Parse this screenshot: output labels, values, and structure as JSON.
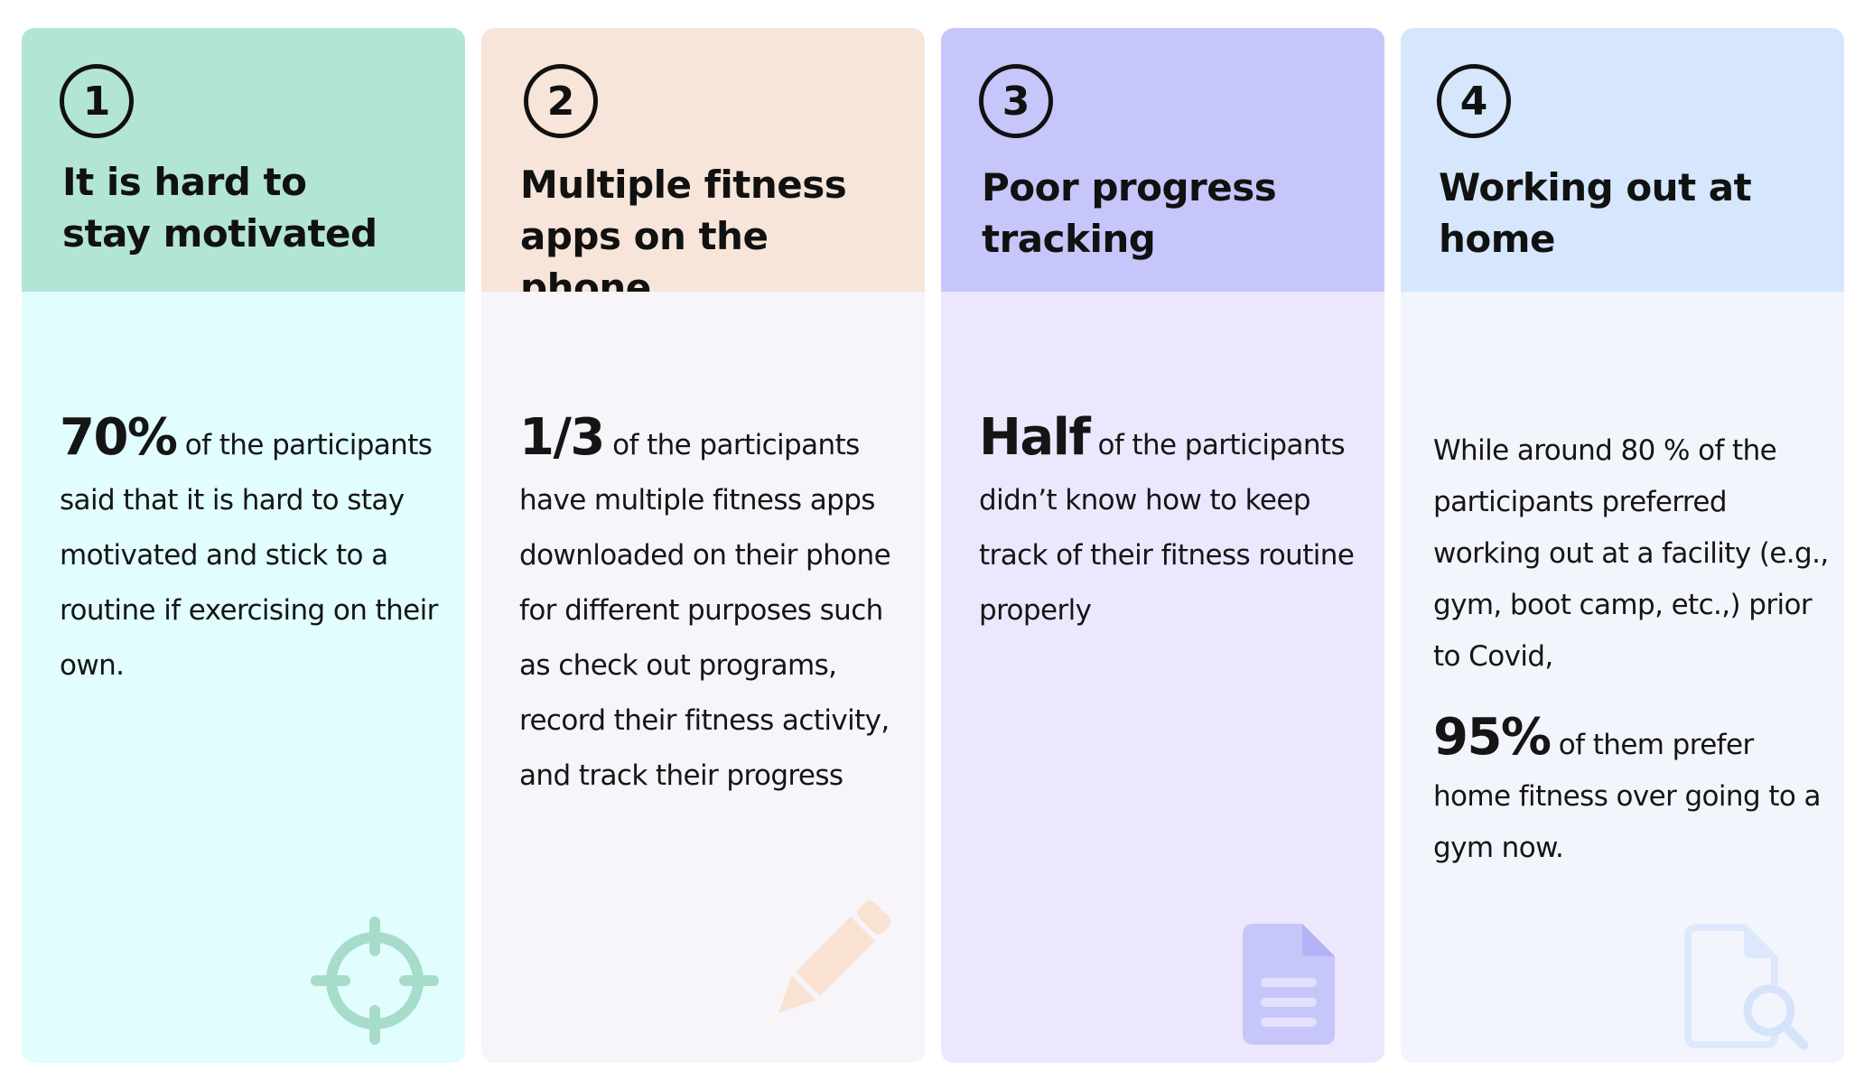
{
  "colors": {
    "card1_header": "#b2e5d6",
    "card1_body": "#e1fdfd",
    "card2_header": "#f7e5d9",
    "card2_body": "#f7f4fa",
    "card3_header": "#c7c6fa",
    "card3_body": "#ede7fd",
    "card4_header": "#d6e6fd",
    "card4_body": "#f3f5fd"
  },
  "cards": [
    {
      "number": "1",
      "title": "It is hard to stay motivated",
      "highlight": "70%",
      "text": " of the participants said that it is hard to stay motivated and stick to a routine if exercising on their own.",
      "icon": "target-icon"
    },
    {
      "number": "2",
      "title": "Multiple fitness apps on the phone",
      "highlight": "1/3",
      "text": " of the participants have multiple fitness apps downloaded on their phone for different purposes such as check out programs, record their fitness activity, and track their progress",
      "icon": "pencil-icon"
    },
    {
      "number": "3",
      "title": "Poor progress tracking",
      "highlight": "Half",
      "text": " of the participants didn’t know how to keep track of their fitness routine properly",
      "icon": "document-icon"
    },
    {
      "number": "4",
      "title": "Working out at home",
      "intro": "While around 80 % of the participants preferred working out at a facility (e.g., gym, boot camp, etc.,) prior to Covid,",
      "highlight": "95%",
      "text": " of them prefer home fitness over going to a gym now.",
      "icon": "document-search-icon"
    }
  ]
}
